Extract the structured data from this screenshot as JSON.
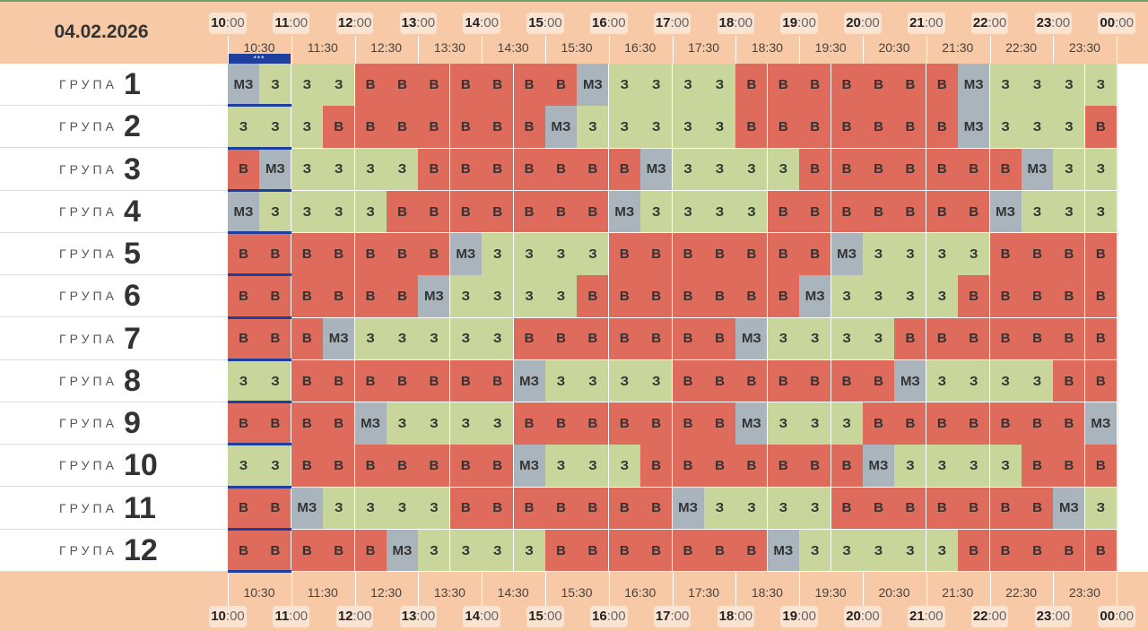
{
  "header": {
    "date": "04.02.2026"
  },
  "hours": [
    {
      "h": "10",
      "m": ":00"
    },
    {
      "h": "11",
      "m": ":00"
    },
    {
      "h": "12",
      "m": ":00"
    },
    {
      "h": "13",
      "m": ":00"
    },
    {
      "h": "14",
      "m": ":00"
    },
    {
      "h": "15",
      "m": ":00"
    },
    {
      "h": "16",
      "m": ":00"
    },
    {
      "h": "17",
      "m": ":00"
    },
    {
      "h": "18",
      "m": ":00"
    },
    {
      "h": "19",
      "m": ":00"
    },
    {
      "h": "20",
      "m": ":00"
    },
    {
      "h": "21",
      "m": ":00"
    },
    {
      "h": "22",
      "m": ":00"
    },
    {
      "h": "23",
      "m": ":00"
    },
    {
      "h": "00",
      "m": ":00"
    }
  ],
  "half_hours": [
    "10:30",
    "11:30",
    "12:30",
    "13:30",
    "14:30",
    "15:30",
    "16:30",
    "17:30",
    "18:30",
    "19:30",
    "20:30",
    "21:30",
    "22:30",
    "23:30"
  ],
  "current_marker": "•••",
  "group_word": "ГРУПА",
  "groups": [
    {
      "num": "1",
      "cells": [
        "МЗ",
        "З",
        "З",
        "З",
        "В",
        "В",
        "В",
        "В",
        "В",
        "В",
        "В",
        "МЗ",
        "З",
        "З",
        "З",
        "З",
        "В",
        "В",
        "В",
        "В",
        "В",
        "В",
        "В",
        "МЗ",
        "З",
        "З",
        "З",
        "З"
      ]
    },
    {
      "num": "2",
      "cells": [
        "З",
        "З",
        "З",
        "В",
        "В",
        "В",
        "В",
        "В",
        "В",
        "В",
        "МЗ",
        "З",
        "З",
        "З",
        "З",
        "З",
        "В",
        "В",
        "В",
        "В",
        "В",
        "В",
        "В",
        "МЗ",
        "З",
        "З",
        "З",
        "В"
      ]
    },
    {
      "num": "3",
      "cells": [
        "В",
        "МЗ",
        "З",
        "З",
        "З",
        "З",
        "В",
        "В",
        "В",
        "В",
        "В",
        "В",
        "В",
        "МЗ",
        "З",
        "З",
        "З",
        "З",
        "В",
        "В",
        "В",
        "В",
        "В",
        "В",
        "В",
        "МЗ",
        "З",
        "З"
      ]
    },
    {
      "num": "4",
      "cells": [
        "МЗ",
        "З",
        "З",
        "З",
        "З",
        "В",
        "В",
        "В",
        "В",
        "В",
        "В",
        "В",
        "МЗ",
        "З",
        "З",
        "З",
        "З",
        "В",
        "В",
        "В",
        "В",
        "В",
        "В",
        "В",
        "МЗ",
        "З",
        "З",
        "З"
      ]
    },
    {
      "num": "5",
      "cells": [
        "В",
        "В",
        "В",
        "В",
        "В",
        "В",
        "В",
        "МЗ",
        "З",
        "З",
        "З",
        "З",
        "В",
        "В",
        "В",
        "В",
        "В",
        "В",
        "В",
        "МЗ",
        "З",
        "З",
        "З",
        "З",
        "В",
        "В",
        "В",
        "В"
      ]
    },
    {
      "num": "6",
      "cells": [
        "В",
        "В",
        "В",
        "В",
        "В",
        "В",
        "МЗ",
        "З",
        "З",
        "З",
        "З",
        "В",
        "В",
        "В",
        "В",
        "В",
        "В",
        "В",
        "МЗ",
        "З",
        "З",
        "З",
        "З",
        "В",
        "В",
        "В",
        "В",
        "В"
      ]
    },
    {
      "num": "7",
      "cells": [
        "В",
        "В",
        "В",
        "МЗ",
        "З",
        "З",
        "З",
        "З",
        "З",
        "В",
        "В",
        "В",
        "В",
        "В",
        "В",
        "В",
        "МЗ",
        "З",
        "З",
        "З",
        "З",
        "В",
        "В",
        "В",
        "В",
        "В",
        "В",
        "В"
      ]
    },
    {
      "num": "8",
      "cells": [
        "З",
        "З",
        "В",
        "В",
        "В",
        "В",
        "В",
        "В",
        "В",
        "МЗ",
        "З",
        "З",
        "З",
        "З",
        "В",
        "В",
        "В",
        "В",
        "В",
        "В",
        "В",
        "МЗ",
        "З",
        "З",
        "З",
        "З",
        "В",
        "В"
      ]
    },
    {
      "num": "9",
      "cells": [
        "В",
        "В",
        "В",
        "В",
        "МЗ",
        "З",
        "З",
        "З",
        "З",
        "В",
        "В",
        "В",
        "В",
        "В",
        "В",
        "В",
        "МЗ",
        "З",
        "З",
        "З",
        "В",
        "В",
        "В",
        "В",
        "В",
        "В",
        "В",
        "МЗ"
      ]
    },
    {
      "num": "10",
      "cells": [
        "З",
        "З",
        "В",
        "В",
        "В",
        "В",
        "В",
        "В",
        "В",
        "МЗ",
        "З",
        "З",
        "З",
        "В",
        "В",
        "В",
        "В",
        "В",
        "В",
        "В",
        "МЗ",
        "З",
        "З",
        "З",
        "З",
        "В",
        "В",
        "В"
      ]
    },
    {
      "num": "11",
      "cells": [
        "В",
        "В",
        "МЗ",
        "З",
        "З",
        "З",
        "З",
        "В",
        "В",
        "В",
        "В",
        "В",
        "В",
        "В",
        "МЗ",
        "З",
        "З",
        "З",
        "З",
        "В",
        "В",
        "В",
        "В",
        "В",
        "В",
        "В",
        "МЗ",
        "З"
      ]
    },
    {
      "num": "12",
      "cells": [
        "В",
        "В",
        "В",
        "В",
        "В",
        "МЗ",
        "З",
        "З",
        "З",
        "З",
        "В",
        "В",
        "В",
        "В",
        "В",
        "В",
        "В",
        "МЗ",
        "З",
        "З",
        "З",
        "З",
        "З",
        "В",
        "В",
        "В",
        "В",
        "В"
      ]
    }
  ],
  "colors": {
    "В": "#de6b5b",
    "З": "#c9d69b",
    "МЗ": "#a9b4bc",
    "header": "#f7c9a6",
    "current": "#1e3f9e"
  }
}
